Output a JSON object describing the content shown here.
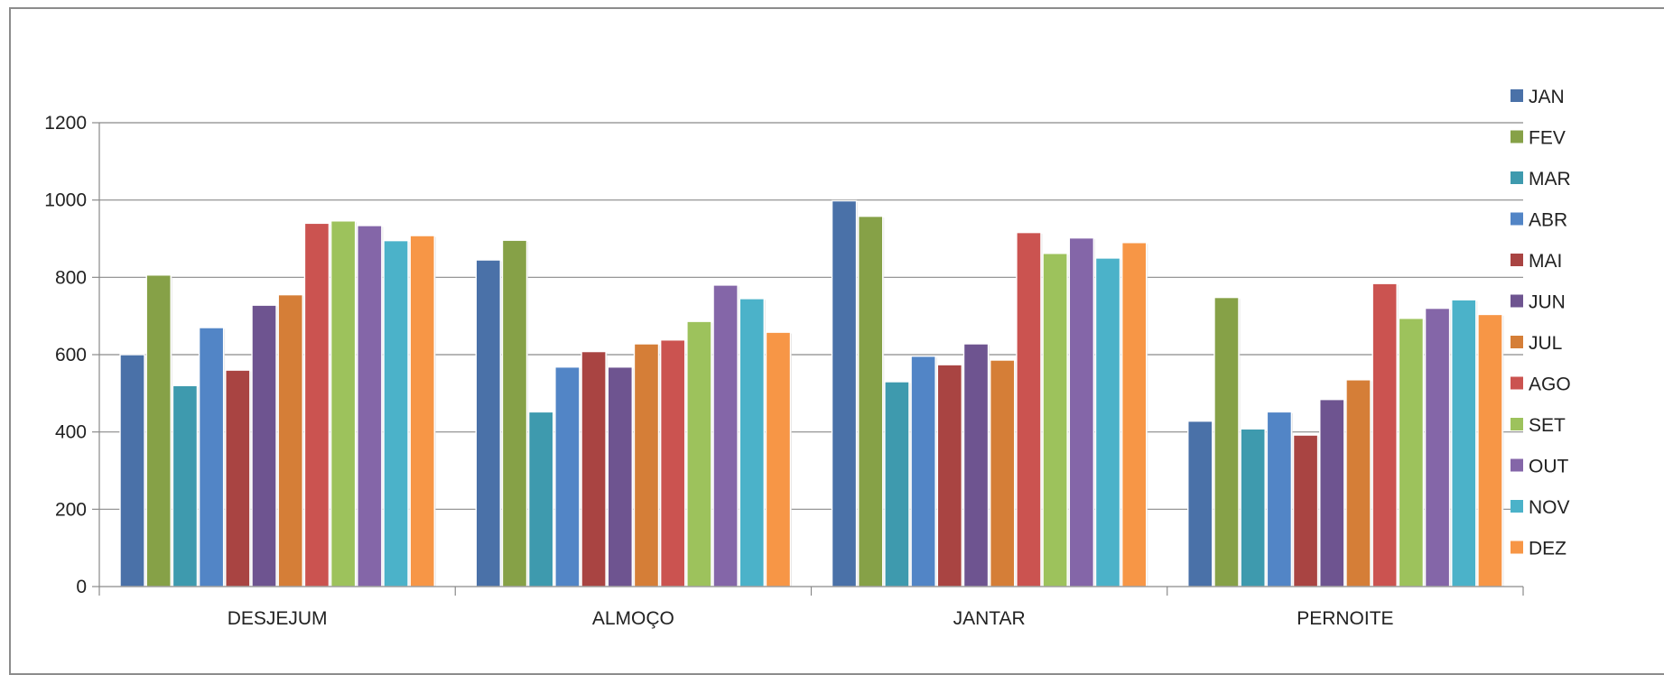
{
  "chart_data": {
    "type": "bar",
    "categories": [
      "DESJEJUM",
      "ALMOÇO",
      "JANTAR",
      "PERNOITE"
    ],
    "ylim": [
      0,
      1200
    ],
    "yticks": [
      0,
      200,
      400,
      600,
      800,
      1000,
      1200
    ],
    "grid": true,
    "legend_position": "right",
    "series": [
      {
        "name": "JAN",
        "color": "#4a71a8",
        "values": [
          600,
          845,
          998,
          428
        ]
      },
      {
        "name": "FEV",
        "color": "#86a147",
        "values": [
          806,
          896,
          958,
          748
        ]
      },
      {
        "name": "MAR",
        "color": "#3e9aae",
        "values": [
          520,
          452,
          530,
          408
        ]
      },
      {
        "name": "ABR",
        "color": "#5285c6",
        "values": [
          670,
          568,
          596,
          452
        ]
      },
      {
        "name": "MAI",
        "color": "#a94442",
        "values": [
          560,
          608,
          574,
          392
        ]
      },
      {
        "name": "JUN",
        "color": "#6e5490",
        "values": [
          728,
          568,
          628,
          484
        ]
      },
      {
        "name": "JUL",
        "color": "#d57e37",
        "values": [
          755,
          628,
          586,
          535
        ]
      },
      {
        "name": "AGO",
        "color": "#cb5350",
        "values": [
          940,
          638,
          916,
          784
        ]
      },
      {
        "name": "SET",
        "color": "#9dc25c",
        "values": [
          946,
          686,
          862,
          694
        ]
      },
      {
        "name": "OUT",
        "color": "#8466a8",
        "values": [
          934,
          780,
          902,
          720
        ]
      },
      {
        "name": "NOV",
        "color": "#4bb2c9",
        "values": [
          895,
          745,
          850,
          742
        ]
      },
      {
        "name": "DEZ",
        "color": "#f79646",
        "values": [
          908,
          658,
          890,
          704
        ]
      }
    ]
  }
}
